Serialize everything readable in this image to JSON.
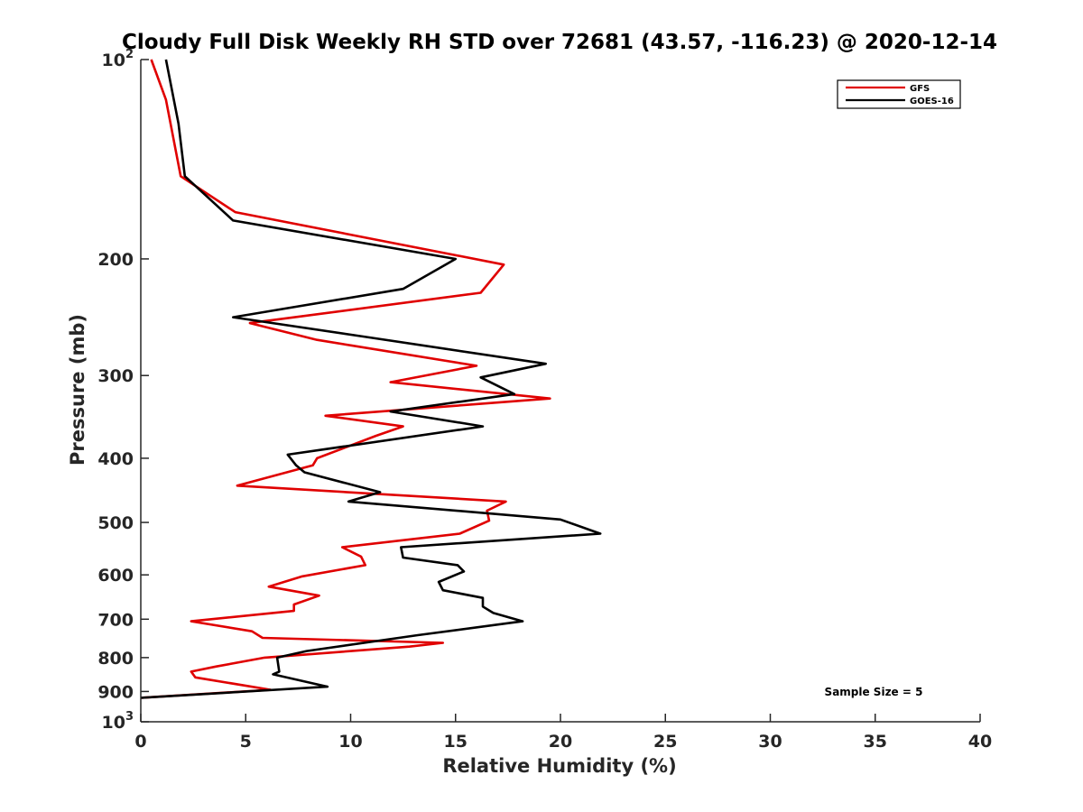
{
  "chart_data": {
    "type": "line",
    "title": "Cloudy Full Disk Weekly RH STD over 72681 (43.57, -116.23) @ 2020-12-14",
    "xlabel": "Relative Humidity (%)",
    "ylabel": "Pressure (mb)",
    "xlim": [
      0,
      40
    ],
    "ylim": [
      100,
      1000
    ],
    "y_scale": "log",
    "y_reversed": true,
    "grid": false,
    "legend_position": "top-right",
    "x_ticks": [
      0,
      5,
      10,
      15,
      20,
      25,
      30,
      35,
      40
    ],
    "y_ticks": [
      100,
      200,
      300,
      400,
      500,
      600,
      700,
      800,
      900,
      1000
    ],
    "y_tick_labels": [
      {
        "base": "10",
        "exp": "2"
      },
      {
        "base": "200"
      },
      {
        "base": "300"
      },
      {
        "base": "400"
      },
      {
        "base": "500"
      },
      {
        "base": "600"
      },
      {
        "base": "700"
      },
      {
        "base": "800"
      },
      {
        "base": "900"
      },
      {
        "base": "10",
        "exp": "3"
      }
    ],
    "annotation": "Sample Size = 5",
    "series": [
      {
        "name": "GFS",
        "color": "#e00000",
        "points": [
          [
            0.5,
            100
          ],
          [
            1.2,
            115
          ],
          [
            1.9,
            150
          ],
          [
            4.5,
            170
          ],
          [
            17.3,
            204
          ],
          [
            16.2,
            225
          ],
          [
            5.2,
            250
          ],
          [
            8.4,
            265
          ],
          [
            16.0,
            290
          ],
          [
            11.9,
            307
          ],
          [
            19.5,
            325
          ],
          [
            8.8,
            345
          ],
          [
            12.5,
            358
          ],
          [
            11.2,
            370
          ],
          [
            8.4,
            400
          ],
          [
            8.2,
            410
          ],
          [
            4.6,
            440
          ],
          [
            17.4,
            465
          ],
          [
            16.5,
            480
          ],
          [
            16.6,
            497
          ],
          [
            15.2,
            520
          ],
          [
            9.6,
            545
          ],
          [
            10.5,
            563
          ],
          [
            10.7,
            580
          ],
          [
            7.7,
            603
          ],
          [
            6.1,
            625
          ],
          [
            8.5,
            645
          ],
          [
            7.3,
            665
          ],
          [
            7.3,
            680
          ],
          [
            2.4,
            705
          ],
          [
            5.3,
            730
          ],
          [
            5.8,
            747
          ],
          [
            14.4,
            760
          ],
          [
            12.8,
            770
          ],
          [
            5.9,
            800
          ],
          [
            3.6,
            825
          ],
          [
            2.4,
            840
          ],
          [
            2.6,
            857
          ],
          [
            6.2,
            895
          ],
          [
            0.0,
            920
          ]
        ]
      },
      {
        "name": "GOES-16",
        "color": "#000000",
        "points": [
          [
            1.2,
            100
          ],
          [
            1.8,
            125
          ],
          [
            2.1,
            150
          ],
          [
            4.4,
            175
          ],
          [
            15.0,
            200
          ],
          [
            12.5,
            222
          ],
          [
            4.4,
            245
          ],
          [
            10.6,
            262
          ],
          [
            19.3,
            288
          ],
          [
            16.2,
            302
          ],
          [
            17.8,
            320
          ],
          [
            11.9,
            340
          ],
          [
            16.3,
            358
          ],
          [
            7.0,
            395
          ],
          [
            7.4,
            410
          ],
          [
            7.8,
            420
          ],
          [
            11.4,
            450
          ],
          [
            9.9,
            465
          ],
          [
            20.0,
            495
          ],
          [
            21.9,
            520
          ],
          [
            12.4,
            545
          ],
          [
            12.5,
            565
          ],
          [
            15.1,
            580
          ],
          [
            15.4,
            593
          ],
          [
            14.2,
            615
          ],
          [
            14.4,
            633
          ],
          [
            16.3,
            650
          ],
          [
            16.3,
            670
          ],
          [
            16.8,
            685
          ],
          [
            18.2,
            705
          ],
          [
            13.2,
            740
          ],
          [
            7.9,
            782
          ],
          [
            6.5,
            800
          ],
          [
            6.6,
            840
          ],
          [
            6.3,
            848
          ],
          [
            8.9,
            885
          ],
          [
            0.0,
            920
          ]
        ]
      }
    ]
  }
}
